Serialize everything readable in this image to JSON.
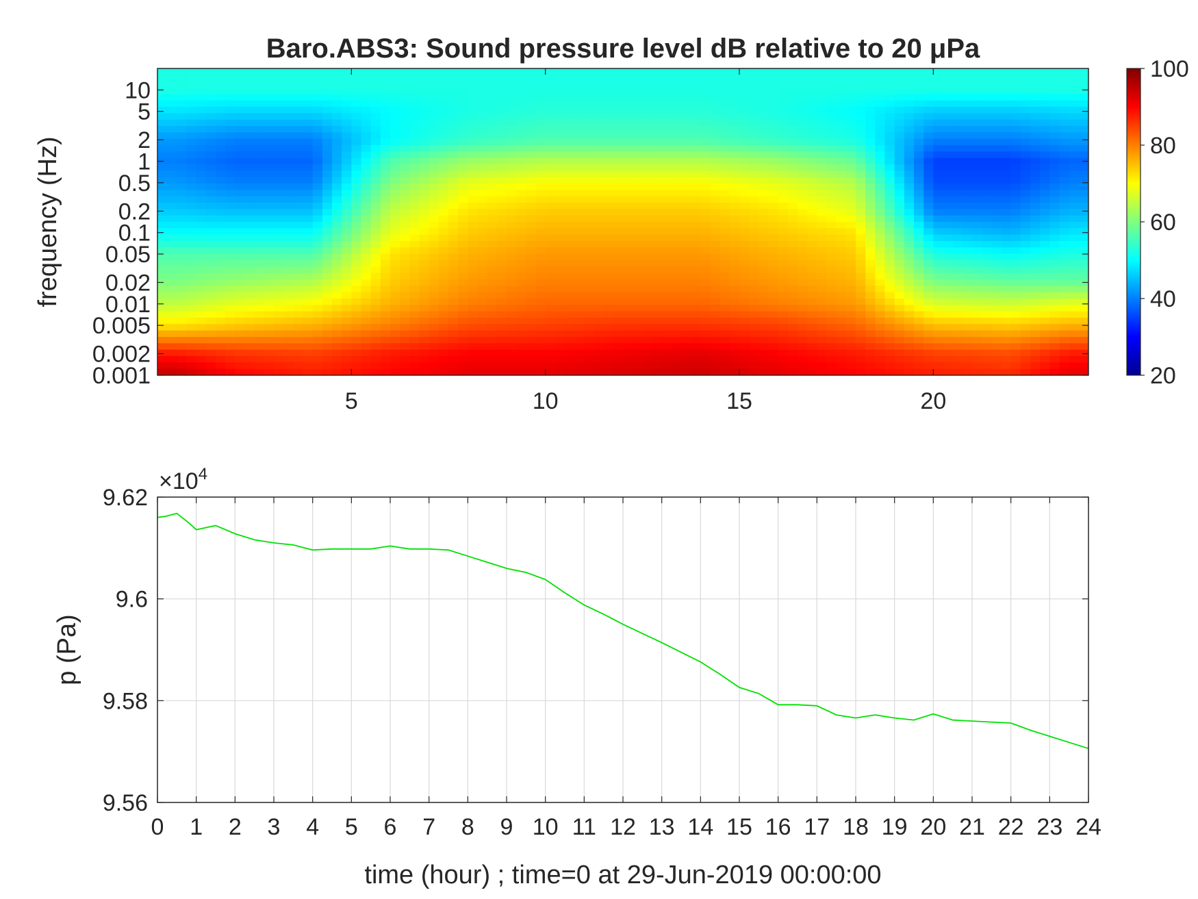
{
  "chart_data": [
    {
      "type": "heatmap",
      "title": "Baro.ABS3: Sound pressure level dB relative to 20 μPa",
      "xlabel": "",
      "ylabel": "frequency (Hz)",
      "xlim": [
        0,
        24
      ],
      "x_ticks": [
        "5",
        "10",
        "15",
        "20"
      ],
      "x_tick_values": [
        5,
        10,
        15,
        20
      ],
      "y_scale": "log",
      "ylim": [
        0.001,
        20
      ],
      "y_ticks": [
        "0.001",
        "0.002",
        "0.005",
        "0.01",
        "0.02",
        "0.05",
        "0.1",
        "0.2",
        "0.5",
        "1",
        "2",
        "5",
        "10"
      ],
      "y_tick_values": [
        0.001,
        0.002,
        0.005,
        0.01,
        0.02,
        0.05,
        0.1,
        0.2,
        0.5,
        1,
        2,
        5,
        10
      ],
      "colorbar": {
        "range": [
          20,
          100
        ],
        "ticks": [
          "20",
          "40",
          "60",
          "80",
          "100"
        ],
        "tick_values": [
          20,
          40,
          60,
          80,
          100
        ],
        "colormap": "jet"
      },
      "row_frequencies": [
        0.001,
        0.002,
        0.005,
        0.01,
        0.02,
        0.05,
        0.1,
        0.2,
        0.5,
        1,
        2,
        5,
        10
      ],
      "column_times": [
        0.5,
        2,
        4,
        6,
        8,
        10,
        12,
        14,
        16,
        18,
        20,
        22,
        23.5
      ],
      "levels_db": [
        [
          95,
          90,
          88,
          90,
          92,
          92,
          93,
          94,
          92,
          90,
          88,
          87,
          92
        ],
        [
          88,
          86,
          85,
          88,
          90,
          90,
          91,
          92,
          90,
          88,
          85,
          84,
          88
        ],
        [
          72,
          74,
          76,
          80,
          84,
          85,
          86,
          86,
          85,
          82,
          75,
          74,
          76
        ],
        [
          65,
          68,
          70,
          76,
          80,
          82,
          82,
          82,
          80,
          78,
          67,
          66,
          68
        ],
        [
          60,
          62,
          64,
          74,
          78,
          80,
          80,
          80,
          78,
          76,
          60,
          58,
          58
        ],
        [
          56,
          56,
          56,
          72,
          76,
          78,
          78,
          78,
          76,
          74,
          52,
          50,
          52
        ],
        [
          50,
          50,
          50,
          68,
          74,
          76,
          76,
          76,
          74,
          72,
          46,
          44,
          48
        ],
        [
          46,
          45,
          45,
          65,
          72,
          74,
          74,
          74,
          72,
          68,
          40,
          40,
          44
        ],
        [
          42,
          40,
          40,
          60,
          68,
          70,
          70,
          70,
          68,
          64,
          36,
          36,
          40
        ],
        [
          40,
          38,
          38,
          56,
          62,
          64,
          64,
          64,
          62,
          58,
          35,
          35,
          38
        ],
        [
          42,
          40,
          40,
          50,
          54,
          56,
          56,
          56,
          54,
          52,
          40,
          40,
          42
        ],
        [
          48,
          47,
          47,
          50,
          52,
          53,
          53,
          53,
          52,
          50,
          46,
          46,
          47
        ],
        [
          52,
          52,
          52,
          52,
          52,
          52,
          52,
          52,
          52,
          52,
          52,
          52,
          52
        ]
      ]
    },
    {
      "type": "line",
      "title": "",
      "xlabel": "time (hour) ; time=0 at 29-Jun-2019 00:00:00",
      "ylabel": "p (Pa)",
      "y_multiplier_label": "×10",
      "y_multiplier_exponent": "4",
      "xlim": [
        0,
        24
      ],
      "ylim": [
        95600,
        96200
      ],
      "x_ticks": [
        "0",
        "1",
        "2",
        "3",
        "4",
        "5",
        "6",
        "7",
        "8",
        "9",
        "10",
        "11",
        "12",
        "13",
        "14",
        "15",
        "16",
        "17",
        "18",
        "19",
        "20",
        "21",
        "22",
        "23",
        "24"
      ],
      "x_tick_values": [
        0,
        1,
        2,
        3,
        4,
        5,
        6,
        7,
        8,
        9,
        10,
        11,
        12,
        13,
        14,
        15,
        16,
        17,
        18,
        19,
        20,
        21,
        22,
        23,
        24
      ],
      "y_ticks": [
        "9.56",
        "9.58",
        "9.6",
        "9.62"
      ],
      "y_tick_values": [
        95600,
        95800,
        96000,
        96200
      ],
      "grid": true,
      "line_color": "#00e000",
      "series": [
        {
          "x": [
            0,
            0.2,
            0.5,
            0.8,
            1,
            1.5,
            2,
            2.5,
            3,
            3.5,
            4,
            4.5,
            5,
            5.5,
            6,
            6.5,
            7,
            7.5,
            8,
            8.5,
            9,
            9.5,
            10,
            10.5,
            11,
            11.5,
            12,
            12.5,
            13,
            13.5,
            14,
            14.5,
            15,
            15.5,
            16,
            16.5,
            17,
            17.5,
            18,
            18.5,
            19,
            19.5,
            20,
            20.5,
            21,
            21.5,
            22,
            22.5,
            23,
            23.5,
            24
          ],
          "y": [
            96160,
            96162,
            96168,
            96150,
            96136,
            96144,
            96128,
            96116,
            96110,
            96106,
            96096,
            96098,
            96098,
            96098,
            96104,
            96098,
            96098,
            96096,
            96084,
            96072,
            96060,
            96052,
            96038,
            96012,
            95988,
            95970,
            95950,
            95932,
            95914,
            95895,
            95876,
            95852,
            95826,
            95814,
            95792,
            95792,
            95790,
            95772,
            95766,
            95772,
            95766,
            95762,
            95774,
            95762,
            95760,
            95758,
            95756,
            95742,
            95730,
            95718,
            95706
          ]
        }
      ]
    }
  ]
}
